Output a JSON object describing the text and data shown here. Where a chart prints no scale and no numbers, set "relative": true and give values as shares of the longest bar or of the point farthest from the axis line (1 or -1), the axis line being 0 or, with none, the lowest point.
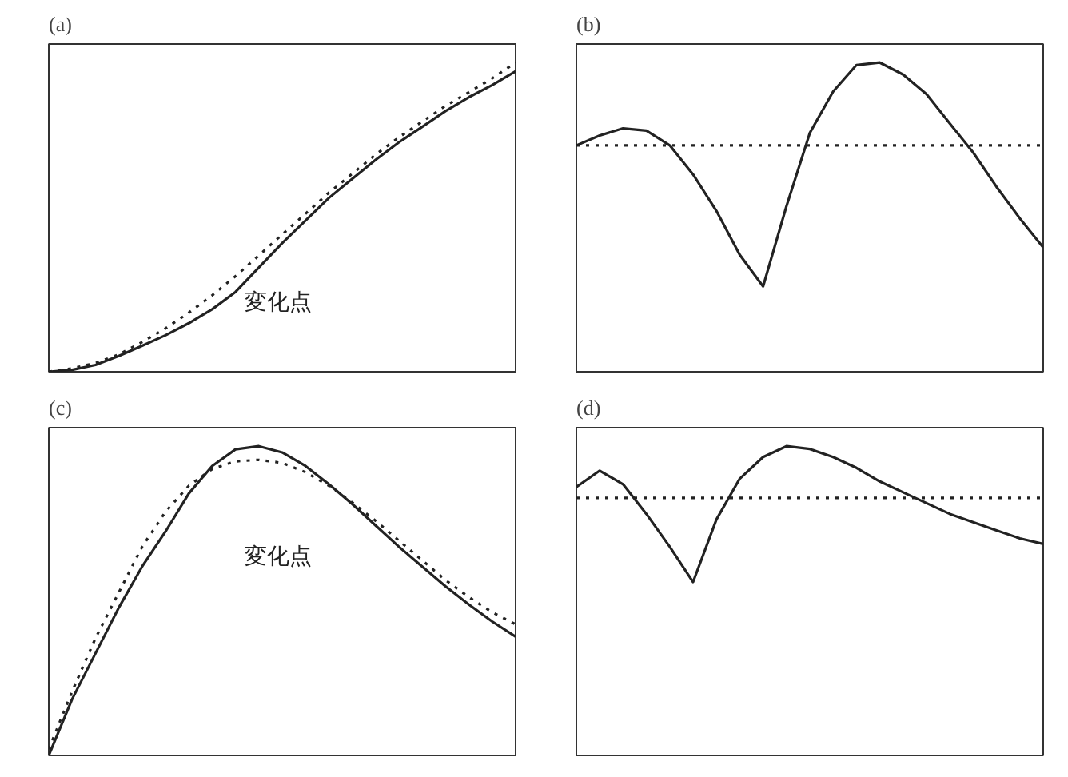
{
  "chart_data": [
    {
      "type": "line",
      "title": "(a)",
      "relative": true,
      "tick_labels": false,
      "grid": false,
      "categories": [
        null,
        null,
        null,
        null,
        null,
        null,
        null,
        null,
        null,
        null,
        null,
        null,
        null,
        null,
        null,
        null,
        null,
        null,
        null,
        null,
        null
      ],
      "annotations": [
        "変化点"
      ],
      "series": [
        {
          "color": "#222222",
          "line_style": "solid",
          "values": [
            0,
            0.006,
            0.022,
            0.051,
            0.084,
            0.118,
            0.157,
            0.202,
            0.258,
            0.337,
            0.416,
            0.489,
            0.562,
            0.624,
            0.685,
            0.742,
            0.792,
            0.843,
            0.888,
            0.927,
            0.972
          ]
        },
        {
          "color": "#222222",
          "line_style": "dotted",
          "values": [
            0,
            0.011,
            0.028,
            0.056,
            0.096,
            0.14,
            0.191,
            0.247,
            0.309,
            0.376,
            0.444,
            0.511,
            0.579,
            0.64,
            0.702,
            0.758,
            0.809,
            0.86,
            0.904,
            0.949,
            1
          ]
        }
      ]
    },
    {
      "type": "line",
      "title": "(b)",
      "relative": true,
      "tick_labels": false,
      "grid": false,
      "categories": [
        null,
        null,
        null,
        null,
        null,
        null,
        null,
        null,
        null,
        null,
        null,
        null,
        null,
        null,
        null,
        null,
        null,
        null,
        null,
        null,
        null
      ],
      "series": [
        {
          "color": "#222222",
          "line_style": "solid",
          "values": [
            0.732,
            0.764,
            0.787,
            0.78,
            0.732,
            0.638,
            0.52,
            0.378,
            0.276,
            0.535,
            0.772,
            0.906,
            0.992,
            1,
            0.961,
            0.898,
            0.803,
            0.709,
            0.598,
            0.496,
            0.402
          ]
        },
        {
          "color": "#222222",
          "line_style": "dotted",
          "values": [
            0.732,
            0.732,
            0.732,
            0.732,
            0.732,
            0.732,
            0.732,
            0.732,
            0.732,
            0.732,
            0.732,
            0.732,
            0.732,
            0.732,
            0.732,
            0.732,
            0.732,
            0.732,
            0.732,
            0.732,
            0.732
          ]
        }
      ]
    },
    {
      "type": "line",
      "title": "(c)",
      "relative": true,
      "tick_labels": false,
      "grid": false,
      "categories": [
        null,
        null,
        null,
        null,
        null,
        null,
        null,
        null,
        null,
        null,
        null,
        null,
        null,
        null,
        null,
        null,
        null,
        null,
        null,
        null,
        null
      ],
      "annotations": [
        "変化点"
      ],
      "series": [
        {
          "color": "#222222",
          "line_style": "solid",
          "values": [
            0,
            0.182,
            0.33,
            0.478,
            0.611,
            0.724,
            0.847,
            0.936,
            0.99,
            1,
            0.98,
            0.936,
            0.877,
            0.813,
            0.744,
            0.675,
            0.611,
            0.547,
            0.488,
            0.433,
            0.384
          ]
        },
        {
          "color": "#222222",
          "line_style": "dotted",
          "values": [
            0.02,
            0.207,
            0.379,
            0.527,
            0.675,
            0.788,
            0.872,
            0.926,
            0.951,
            0.956,
            0.946,
            0.916,
            0.872,
            0.818,
            0.759,
            0.695,
            0.631,
            0.567,
            0.512,
            0.463,
            0.424
          ]
        }
      ]
    },
    {
      "type": "line",
      "title": "(d)",
      "relative": true,
      "tick_labels": false,
      "grid": false,
      "categories": [
        null,
        null,
        null,
        null,
        null,
        null,
        null,
        null,
        null,
        null,
        null,
        null,
        null,
        null,
        null,
        null,
        null,
        null,
        null,
        null,
        null
      ],
      "series": [
        {
          "color": "#222222",
          "line_style": "solid",
          "values": [
            0.868,
            0.921,
            0.877,
            0.781,
            0.675,
            0.561,
            0.763,
            0.895,
            0.965,
            1,
            0.991,
            0.965,
            0.93,
            0.886,
            0.851,
            0.816,
            0.781,
            0.754,
            0.728,
            0.702,
            0.684
          ]
        },
        {
          "color": "#222222",
          "line_style": "dotted",
          "values": [
            0.833,
            0.833,
            0.833,
            0.833,
            0.833,
            0.833,
            0.833,
            0.833,
            0.833,
            0.833,
            0.833,
            0.833,
            0.833,
            0.833,
            0.833,
            0.833,
            0.833,
            0.833,
            0.833,
            0.833,
            0.833
          ]
        }
      ]
    }
  ]
}
